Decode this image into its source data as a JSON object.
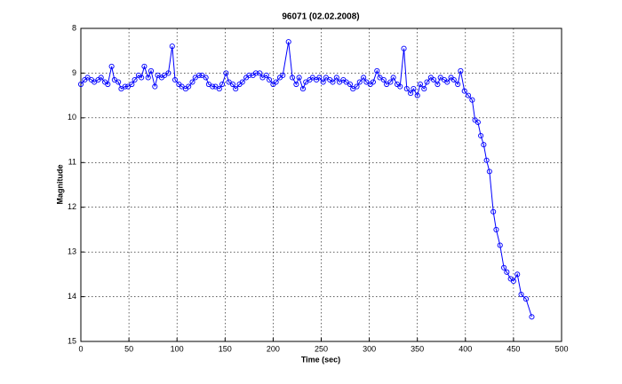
{
  "chart_data": {
    "type": "line",
    "title": "96071 (02.02.2008)",
    "x_label": "Time (sec)",
    "y_label": "Magnitude",
    "x": [
      0,
      4,
      7,
      11,
      14,
      18,
      21,
      25,
      28,
      32,
      35,
      39,
      42,
      46,
      49,
      53,
      56,
      60,
      63,
      66,
      70,
      73,
      77,
      80,
      84,
      87,
      91,
      95,
      98,
      102,
      105,
      109,
      112,
      116,
      119,
      123,
      126,
      130,
      133,
      137,
      140,
      144,
      147,
      151,
      154,
      158,
      161,
      165,
      168,
      172,
      175,
      179,
      182,
      186,
      189,
      193,
      196,
      200,
      203,
      207,
      210,
      216,
      220,
      224,
      227,
      231,
      234,
      238,
      241,
      245,
      248,
      252,
      255,
      259,
      262,
      266,
      269,
      273,
      276,
      280,
      283,
      287,
      290,
      294,
      297,
      301,
      304,
      308,
      311,
      315,
      318,
      322,
      325,
      329,
      332,
      336,
      339,
      343,
      346,
      350,
      353,
      357,
      360,
      364,
      367,
      371,
      374,
      378,
      381,
      385,
      388,
      392,
      395,
      399,
      403,
      407,
      410,
      413,
      416,
      419,
      422,
      425,
      429,
      432,
      436,
      440,
      443,
      447,
      450,
      454,
      458,
      463,
      469
    ],
    "series": [
      {
        "color": "#0000ff",
        "values": [
          9.25,
          9.15,
          9.1,
          9.15,
          9.2,
          9.15,
          9.1,
          9.2,
          9.25,
          8.85,
          9.15,
          9.2,
          9.35,
          9.3,
          9.3,
          9.25,
          9.15,
          9.05,
          9.1,
          8.85,
          9.1,
          8.95,
          9.3,
          9.05,
          9.1,
          9.05,
          9.0,
          8.4,
          9.15,
          9.25,
          9.3,
          9.35,
          9.3,
          9.2,
          9.1,
          9.05,
          9.05,
          9.1,
          9.25,
          9.3,
          9.3,
          9.35,
          9.25,
          9.0,
          9.2,
          9.25,
          9.35,
          9.25,
          9.2,
          9.1,
          9.05,
          9.05,
          9.0,
          9.0,
          9.1,
          9.05,
          9.15,
          9.25,
          9.2,
          9.1,
          9.05,
          8.3,
          9.1,
          9.25,
          9.1,
          9.35,
          9.2,
          9.15,
          9.1,
          9.15,
          9.1,
          9.2,
          9.1,
          9.15,
          9.2,
          9.1,
          9.2,
          9.15,
          9.2,
          9.25,
          9.35,
          9.3,
          9.2,
          9.1,
          9.2,
          9.25,
          9.2,
          8.95,
          9.1,
          9.15,
          9.25,
          9.2,
          9.1,
          9.25,
          9.3,
          8.45,
          9.35,
          9.45,
          9.35,
          9.5,
          9.25,
          9.35,
          9.2,
          9.1,
          9.15,
          9.25,
          9.1,
          9.15,
          9.2,
          9.1,
          9.15,
          9.25,
          8.95,
          9.4,
          9.5,
          9.6,
          10.05,
          10.1,
          10.4,
          10.6,
          10.95,
          11.2,
          12.1,
          12.5,
          12.85,
          13.35,
          13.45,
          13.6,
          13.65,
          13.5,
          13.95,
          14.05,
          14.45
        ]
      }
    ],
    "xlim": [
      0,
      500
    ],
    "xticks": [
      0,
      50,
      100,
      150,
      200,
      250,
      300,
      350,
      400,
      450,
      500
    ],
    "ylim": [
      8,
      15
    ],
    "yticks": [
      8,
      9,
      10,
      11,
      12,
      13,
      14,
      15
    ],
    "y_reversed": true,
    "grid": true
  }
}
